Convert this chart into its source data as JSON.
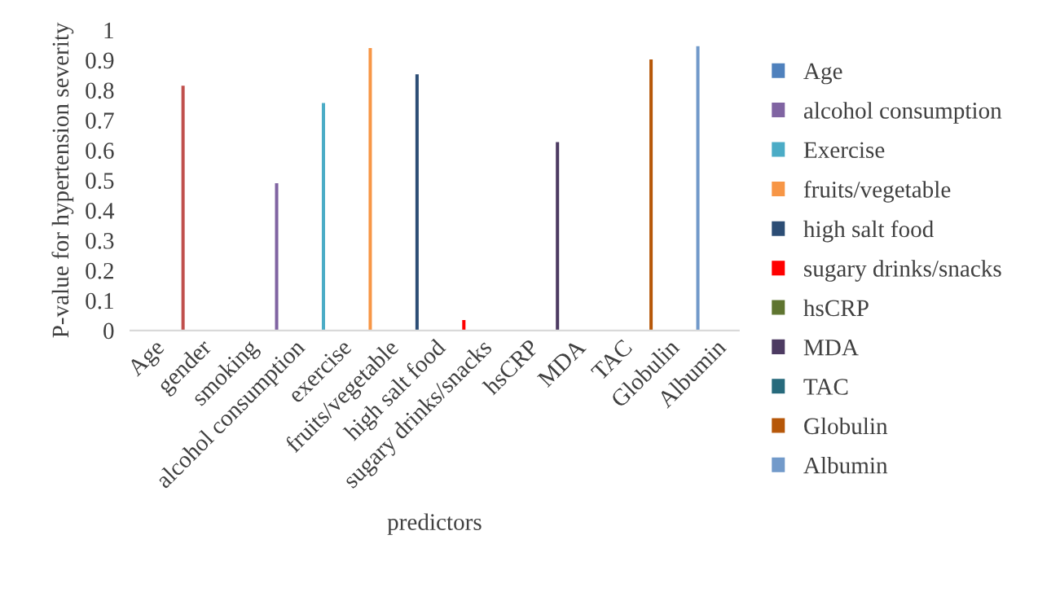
{
  "chart_data": {
    "type": "bar",
    "xlabel": "predictors",
    "ylabel": "P-value for hypertension severity",
    "categories": [
      "Age",
      "gender",
      "smoking",
      "alcohol consumption",
      "exercise",
      "fruits/vegetable",
      "high salt food",
      "sugary drinks/snacks",
      "hsCRP",
      "MDA",
      "TAC",
      "Globulin",
      "Albumin"
    ],
    "ylim": [
      0,
      1
    ],
    "yticks": [
      0,
      0.1,
      0.2,
      0.3,
      0.4,
      0.5,
      0.6,
      0.7,
      0.8,
      0.9,
      1
    ],
    "grid": false,
    "legend": "right",
    "series": [
      {
        "name": "Age",
        "color": "#4f81bd",
        "values": [
          null,
          null,
          null,
          null,
          null,
          null,
          null,
          null,
          null,
          null,
          null,
          null,
          null
        ]
      },
      {
        "color": "#c0504d",
        "values": [
          null,
          0.815,
          null,
          null,
          null,
          null,
          null,
          null,
          null,
          null,
          null,
          null,
          null
        ]
      },
      {
        "name": "alcohol consumption",
        "color": "#8064a2",
        "values": [
          null,
          null,
          null,
          0.49,
          null,
          null,
          null,
          null,
          null,
          null,
          null,
          null,
          null
        ]
      },
      {
        "name": "Exercise",
        "color": "#4bacc6",
        "values": [
          null,
          null,
          null,
          null,
          0.757,
          null,
          null,
          null,
          null,
          null,
          null,
          null,
          null
        ]
      },
      {
        "name": "fruits/vegetable",
        "color": "#f79646",
        "values": [
          null,
          null,
          null,
          null,
          null,
          0.94,
          null,
          null,
          null,
          null,
          null,
          null,
          null
        ]
      },
      {
        "name": "high salt food",
        "color": "#2c4d75",
        "values": [
          null,
          null,
          null,
          null,
          null,
          null,
          0.853,
          null,
          null,
          null,
          null,
          null,
          null
        ]
      },
      {
        "name": "sugary drinks/snacks",
        "color": "#ff0000",
        "values": [
          null,
          null,
          null,
          null,
          null,
          null,
          null,
          0.035,
          null,
          null,
          null,
          null,
          null
        ]
      },
      {
        "name": "hsCRP",
        "color": "#5f7530",
        "values": [
          null,
          null,
          null,
          null,
          null,
          null,
          null,
          null,
          null,
          null,
          null,
          null,
          null
        ]
      },
      {
        "name": "MDA",
        "color": "#4d3b62",
        "values": [
          null,
          null,
          null,
          null,
          null,
          null,
          null,
          null,
          null,
          0.627,
          null,
          null,
          null
        ]
      },
      {
        "name": "TAC",
        "color": "#276a7c",
        "values": [
          null,
          null,
          null,
          null,
          null,
          null,
          null,
          null,
          null,
          null,
          null,
          null,
          null
        ]
      },
      {
        "name": "Globulin",
        "color": "#b65708",
        "values": [
          null,
          null,
          null,
          null,
          null,
          null,
          null,
          null,
          null,
          null,
          null,
          0.902,
          null
        ]
      },
      {
        "name": "Albumin",
        "color": "#729aca",
        "values": [
          null,
          null,
          null,
          null,
          null,
          null,
          null,
          null,
          null,
          null,
          null,
          null,
          0.946
        ]
      }
    ]
  }
}
